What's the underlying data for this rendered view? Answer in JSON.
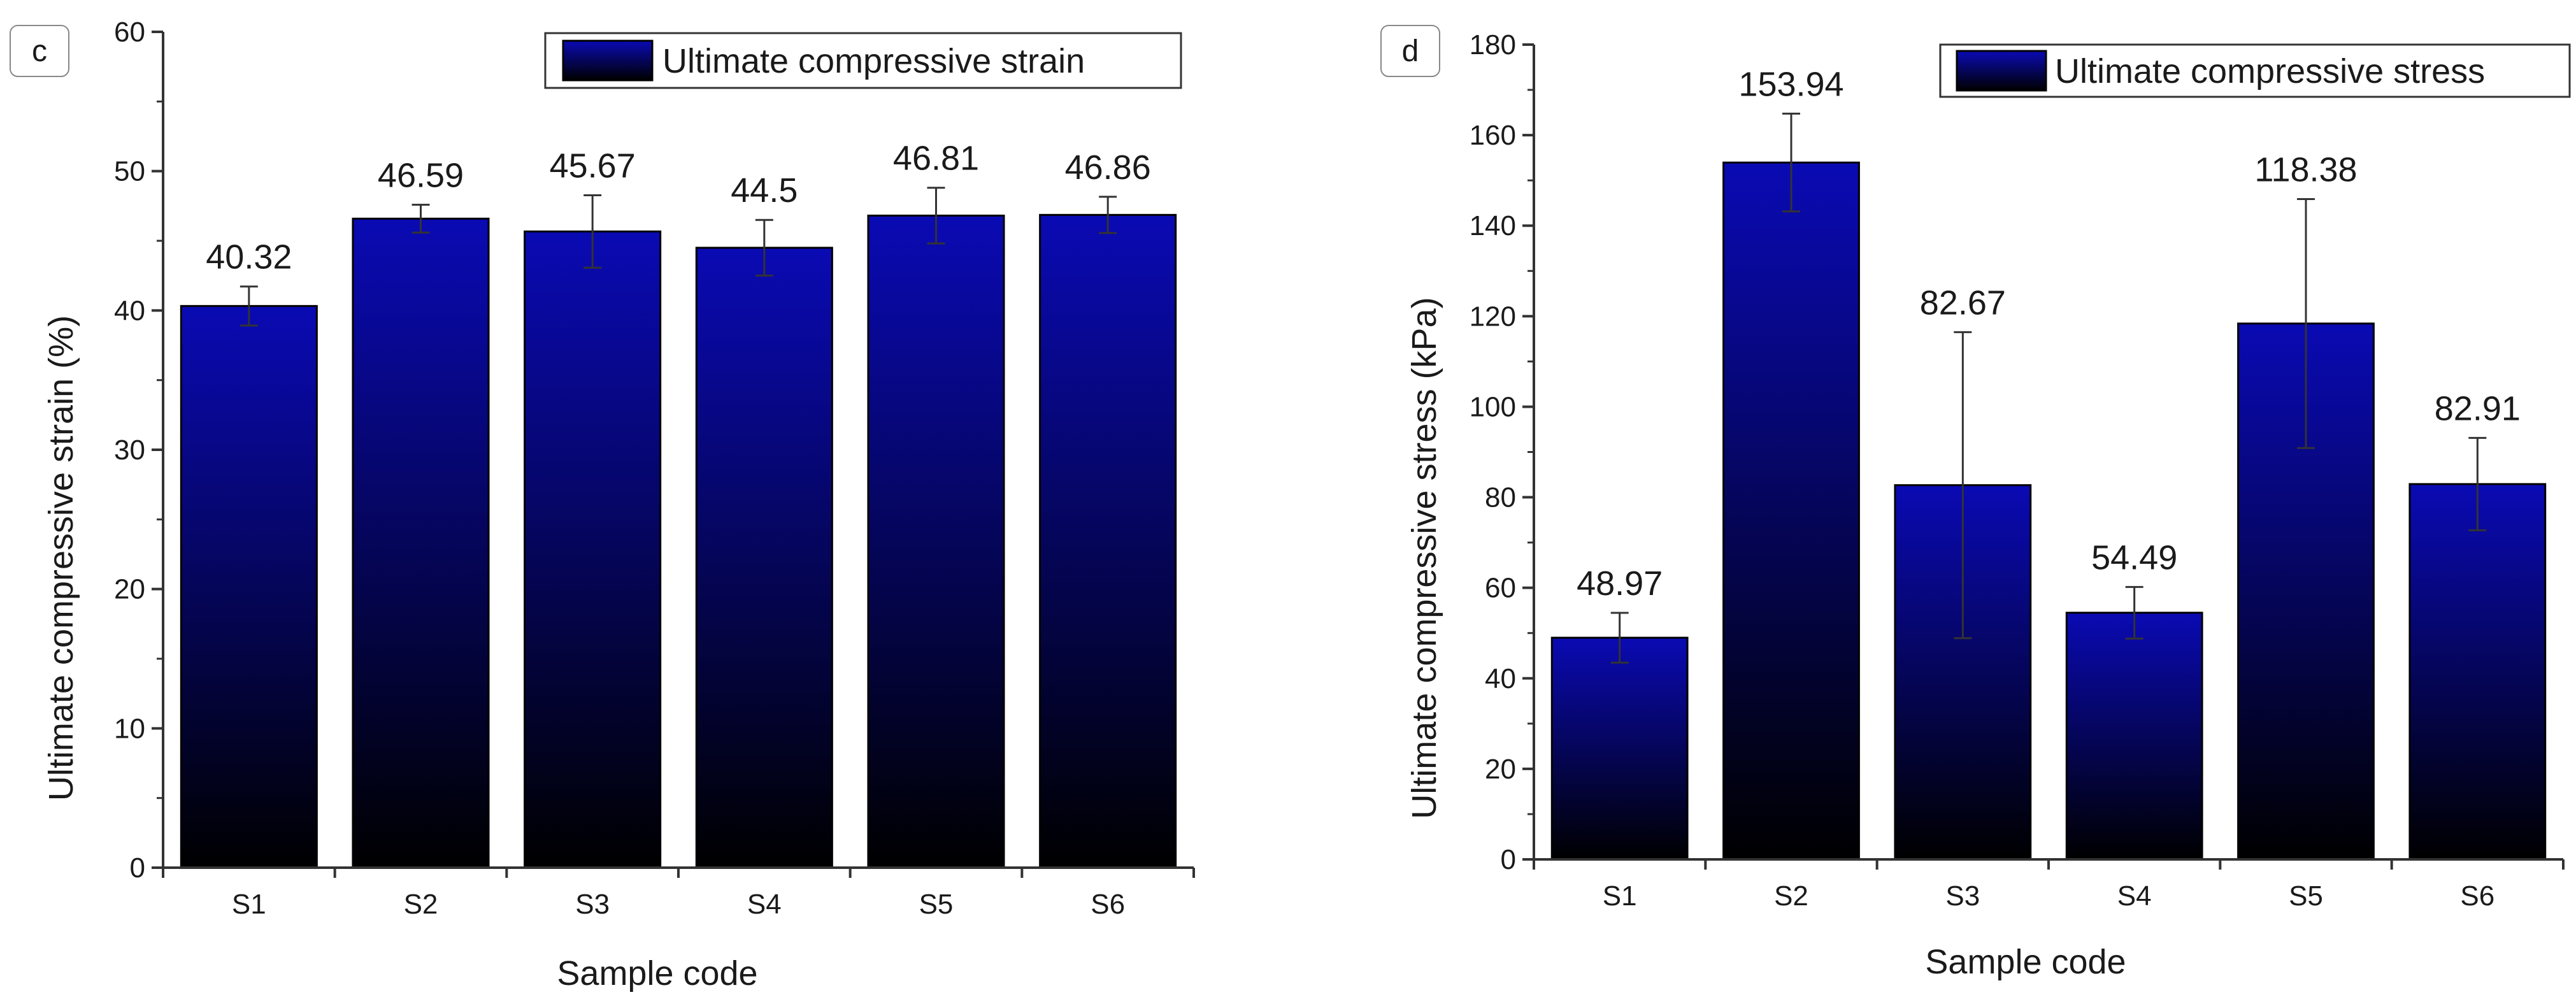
{
  "chart_data": [
    {
      "type": "bar",
      "panel_label": "c",
      "categories": [
        "S1",
        "S2",
        "S3",
        "S4",
        "S5",
        "S6"
      ],
      "series": [
        {
          "name": "Ultimate compressive strain",
          "values": [
            40.32,
            46.59,
            45.67,
            44.5,
            46.81,
            46.86
          ]
        }
      ],
      "errors": [
        1.4,
        1.0,
        2.6,
        2.0,
        2.0,
        1.3
      ],
      "value_labels": [
        "40.32",
        "46.59",
        "45.67",
        "44.5",
        "46.81",
        "46.86"
      ],
      "xlabel": "Sample code",
      "ylabel": "Ultimate compressive strain (%)",
      "ylim": [
        0,
        60
      ],
      "yticks": [
        0,
        10,
        20,
        30,
        40,
        50,
        60
      ],
      "ytick_labels": [
        "0",
        "10",
        "20",
        "30",
        "40",
        "50",
        "60"
      ],
      "legend_position": "top-right",
      "grid": false
    },
    {
      "type": "bar",
      "panel_label": "d",
      "categories": [
        "S1",
        "S2",
        "S3",
        "S4",
        "S5",
        "S6"
      ],
      "series": [
        {
          "name": "Ultimate compressive stress",
          "values": [
            48.97,
            153.94,
            82.67,
            54.49,
            118.38,
            82.91
          ]
        }
      ],
      "errors": [
        5.5,
        10.8,
        33.8,
        5.7,
        27.5,
        10.2
      ],
      "value_labels": [
        "48.97",
        "153.94",
        "82.67",
        "54.49",
        "118.38",
        "82.91"
      ],
      "xlabel": "Sample code",
      "ylabel": "Ultimate compressive stress (kPa)",
      "ylim": [
        0,
        180
      ],
      "yticks": [
        0,
        20,
        40,
        60,
        80,
        100,
        120,
        140,
        160,
        180
      ],
      "ytick_labels": [
        "0",
        "20",
        "40",
        "60",
        "80",
        "100",
        "120",
        "140",
        "160",
        "180"
      ],
      "legend_position": "top-right",
      "grid": false
    }
  ],
  "colors": {
    "bar_top": "#0a0ab4",
    "bar_bottom": "#000000",
    "axis": "#333333",
    "text": "#1a1a1a"
  }
}
